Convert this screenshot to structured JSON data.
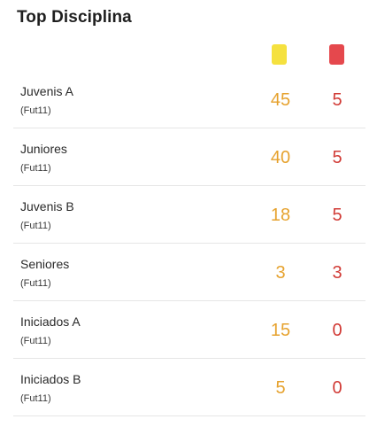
{
  "header": {
    "title": "Top Disciplina"
  },
  "colors": {
    "yellow_card": "#f5e13f",
    "red_card": "#e5484d",
    "yellow_text": "#e6a22e",
    "red_text": "#d13b36"
  },
  "icons": {
    "yellow": "yellow-card-icon",
    "red": "red-card-icon"
  },
  "rows": [
    {
      "name": "Juvenis A",
      "format": "(Fut11)",
      "yellow": "45",
      "red": "5"
    },
    {
      "name": "Juniores",
      "format": "(Fut11)",
      "yellow": "40",
      "red": "5"
    },
    {
      "name": "Juvenis B",
      "format": "(Fut11)",
      "yellow": "18",
      "red": "5"
    },
    {
      "name": "Seniores",
      "format": "(Fut11)",
      "yellow": "3",
      "red": "3"
    },
    {
      "name": "Iniciados A",
      "format": "(Fut11)",
      "yellow": "15",
      "red": "0"
    },
    {
      "name": "Iniciados B",
      "format": "(Fut11)",
      "yellow": "5",
      "red": "0"
    }
  ]
}
